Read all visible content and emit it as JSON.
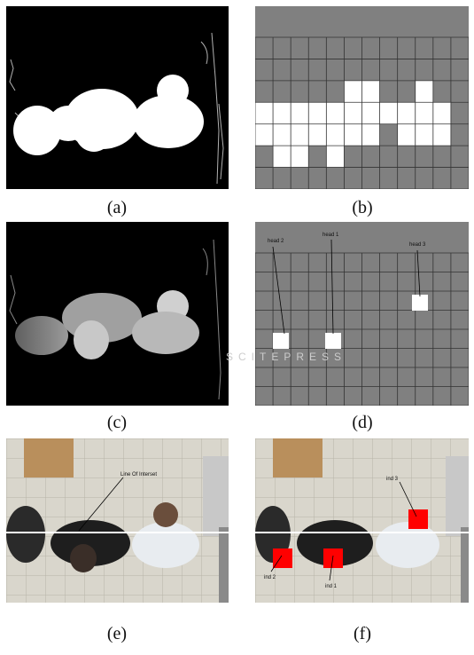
{
  "figure": {
    "captions": [
      "(a)",
      "(b)",
      "(c)",
      "(d)",
      "(e)",
      "(f)"
    ],
    "d_labels": [
      "head 2",
      "head 1",
      "head 3"
    ],
    "e_label": "Line Of Interset",
    "f_labels": [
      "ind 3",
      "ind 2",
      "ind 1"
    ],
    "watermark": "SCITEPRESS"
  },
  "colors": {
    "grid_gray": "#808080",
    "mask_white": "#ffffff",
    "marker_red": "#ff0000"
  }
}
